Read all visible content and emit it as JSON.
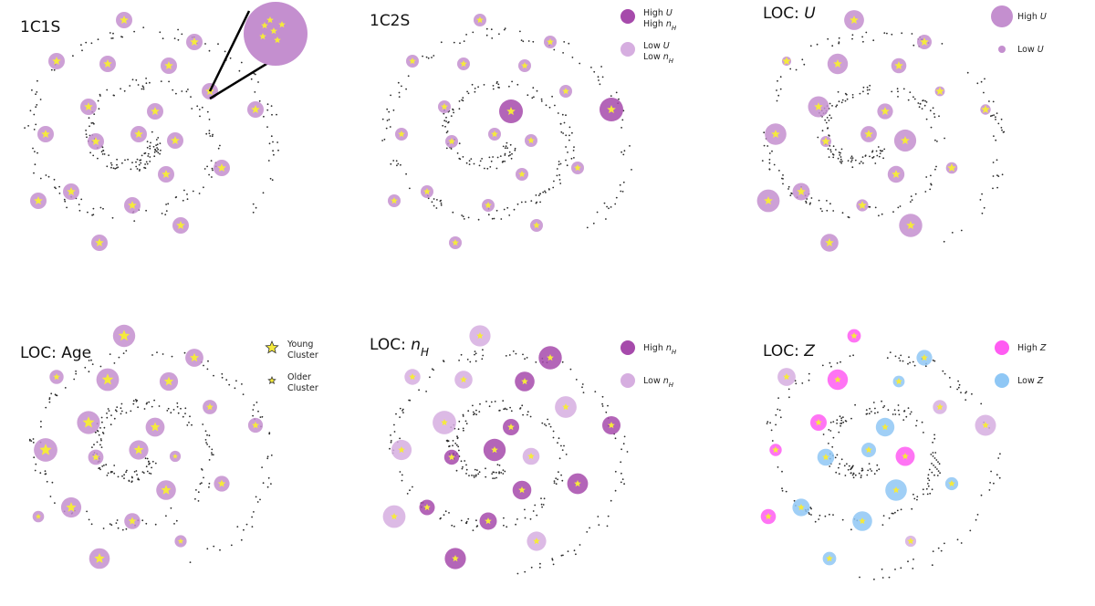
{
  "colors": {
    "standard": "#c48fcf",
    "high": "#a64aab",
    "low": "#d6aee0",
    "star": "#f5ea3c",
    "highZ": "#ff5cf2",
    "lowZ": "#8fc7f5",
    "dots": "#2a2a2a"
  },
  "panels": [
    {
      "id": "1c1s",
      "title": {
        "main": "1C1S",
        "italic": "",
        "sub": ""
      },
      "legend": []
    },
    {
      "id": "1c2s",
      "title": {
        "main": "1C2S",
        "italic": "",
        "sub": ""
      },
      "legend": [
        {
          "line1": "High ",
          "line1_it": "U",
          "line2": "High ",
          "line2_it": "n",
          "line2_sub": "H",
          "swatch": "high"
        },
        {
          "line1": "Low ",
          "line1_it": "U",
          "line2": "Low ",
          "line2_it": "n",
          "line2_sub": "H",
          "swatch": "low"
        }
      ]
    },
    {
      "id": "loc-u",
      "title": {
        "main": "LOC: ",
        "italic": "U",
        "sub": ""
      },
      "legend": [
        {
          "line1": "High ",
          "line1_it": "U",
          "swatch": "standard-large"
        },
        {
          "line1": "Low ",
          "line1_it": "U",
          "swatch": "standard-small"
        }
      ]
    },
    {
      "id": "loc-age",
      "title": {
        "main": "LOC: Age",
        "italic": "",
        "sub": ""
      },
      "legend": [
        {
          "line1": "Young",
          "line2": "Cluster",
          "swatch": "star-large"
        },
        {
          "line1": "Older",
          "line2": "Cluster",
          "swatch": "star-small"
        }
      ]
    },
    {
      "id": "loc-nh",
      "title": {
        "main": "LOC: ",
        "italic": "n",
        "sub": "H"
      },
      "legend": [
        {
          "line1": "High ",
          "line1_it": "n",
          "line1_sub": "H",
          "swatch": "high"
        },
        {
          "line1": "Low ",
          "line1_it": "n",
          "line1_sub": "H",
          "swatch": "low"
        }
      ]
    },
    {
      "id": "loc-z",
      "title": {
        "main": "LOC: ",
        "italic": "Z",
        "sub": ""
      },
      "legend": [
        {
          "line1": "High ",
          "line1_it": "Z",
          "swatch": "highZ"
        },
        {
          "line1": "Low ",
          "line1_it": "Z",
          "swatch": "lowZ"
        }
      ]
    }
  ]
}
